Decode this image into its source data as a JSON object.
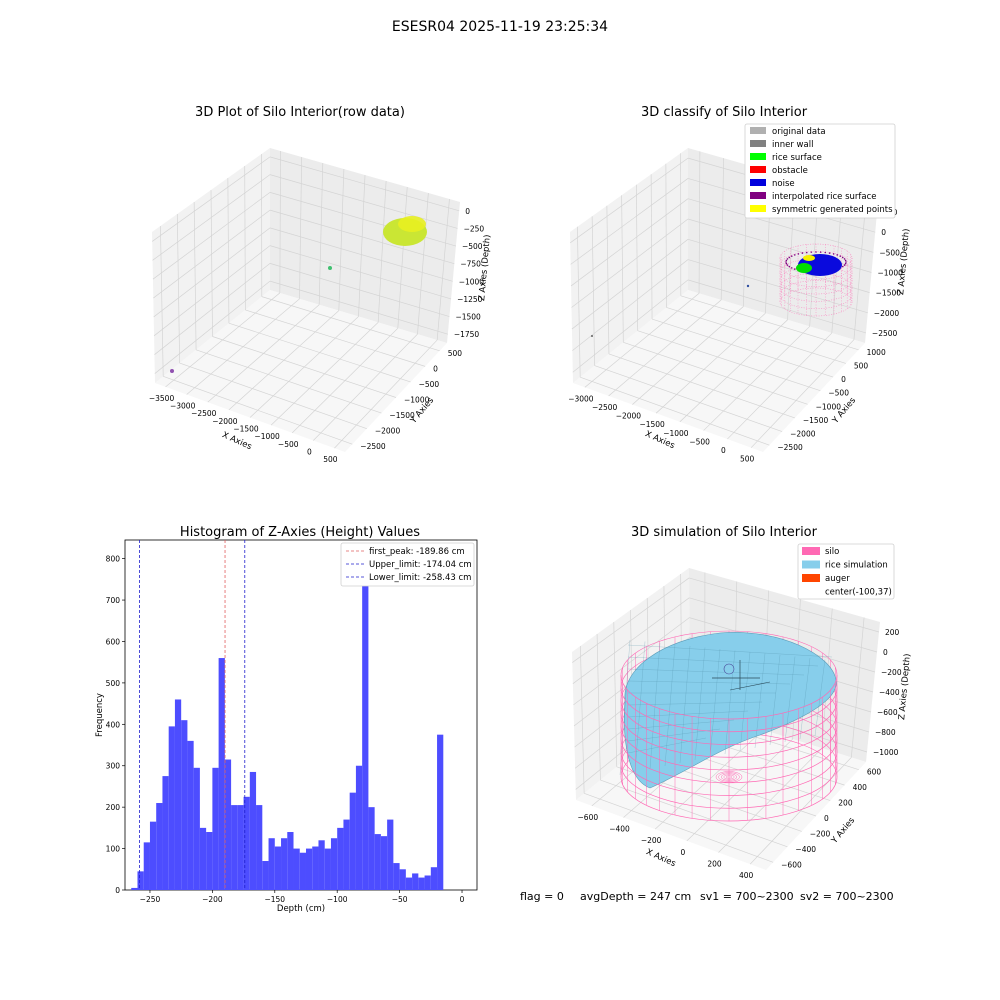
{
  "suptitle": "ESESR04 2025-11-19 23:25:34",
  "footer": {
    "flag": "flag = 0",
    "avg": "avgDepth = 247 cm",
    "sv1": "sv1 = 700~2300",
    "sv2": "sv2 = 700~2300"
  },
  "colors": {
    "hist_bar": "#4d4dff",
    "first_peak": "#e06060",
    "limit_line": "#2020cc",
    "silo": "#ff69b4",
    "rice": "#87ceeb",
    "auger": "#ff4500",
    "rice_surface": "#00ff00",
    "noise": "#0000dd",
    "interpolated": "#800080",
    "symmetric": "#ffff00",
    "original": "#b0b0b0",
    "inner_wall": "#808080",
    "raw_points": "#c8e62a"
  },
  "chart_data": [
    {
      "type": "scatter",
      "title": "3D Plot of Silo Interior(row data)",
      "xlabel": "X Axies",
      "ylabel": "Y Axies",
      "zlabel": "Z Axies (Depth)",
      "x_ticks": [
        "−3500",
        "−3000",
        "−2500",
        "−2000",
        "−1500",
        "−1000",
        "−500",
        "0",
        "500"
      ],
      "y_ticks": [
        "500",
        "0",
        "−500",
        "−1000",
        "−1500",
        "−2000",
        "−2500"
      ],
      "z_ticks": [
        "0",
        "−250",
        "−500",
        "−750",
        "−1000",
        "−1250",
        "−1500",
        "−1750"
      ],
      "xlim": [
        -3500,
        500
      ],
      "ylim": [
        -2500,
        500
      ],
      "zlim": [
        -1750,
        0
      ],
      "grid": true
    },
    {
      "type": "scatter",
      "title": "3D classify of Silo Interior",
      "xlabel": "X Axies",
      "ylabel": "Y Axies",
      "zlabel": "Z Axies (Depth)",
      "x_ticks": [
        "−3000",
        "−2500",
        "−2000",
        "−1500",
        "−1000",
        "−500",
        "0",
        "500"
      ],
      "y_ticks": [
        "1000",
        "500",
        "0",
        "−500",
        "−1000",
        "−1500",
        "−2000",
        "−2500"
      ],
      "z_ticks": [
        "500",
        "0",
        "−500",
        "−1000",
        "−1500",
        "−2000",
        "−2500"
      ],
      "xlim": [
        -3000,
        500
      ],
      "ylim": [
        -2500,
        1000
      ],
      "zlim": [
        -2500,
        500
      ],
      "legend": [
        "original data",
        "inner wall",
        "rice surface",
        "obstacle",
        "noise",
        "interpolated rice surface",
        "symmetric generated points"
      ],
      "legend_position": "top-right",
      "grid": true
    },
    {
      "type": "bar",
      "title": "Histogram of Z-Axies (Height) Values",
      "xlabel": "Depth (cm)",
      "ylabel": "Frequency",
      "xlim": [
        -270,
        12
      ],
      "ylim": [
        0,
        845
      ],
      "x_ticks": [
        -250,
        -200,
        -150,
        -100,
        -50,
        0
      ],
      "x_tick_labels": [
        "−250",
        "−200",
        "−150",
        "−100",
        "−50",
        "0"
      ],
      "y_ticks": [
        0,
        100,
        200,
        300,
        400,
        500,
        600,
        700,
        800
      ],
      "bin_start": -265,
      "bin_width": 5,
      "values": [
        5,
        45,
        115,
        165,
        210,
        275,
        395,
        460,
        410,
        360,
        295,
        150,
        140,
        295,
        560,
        315,
        205,
        205,
        225,
        285,
        205,
        70,
        125,
        105,
        125,
        140,
        100,
        90,
        100,
        105,
        120,
        100,
        125,
        150,
        170,
        235,
        300,
        800,
        200,
        135,
        130,
        170,
        65,
        50,
        30,
        40,
        30,
        35,
        55,
        375
      ],
      "vlines": [
        {
          "name": "first_peak: -189.86 cm",
          "x": -189.86,
          "color": "first_peak"
        },
        {
          "name": "Upper_limit: -174.04 cm",
          "x": -174.04,
          "color": "limit_line"
        },
        {
          "name": "Lower_limit: -258.43 cm",
          "x": -258.43,
          "color": "limit_line"
        }
      ],
      "legend_position": "top-right"
    },
    {
      "type": "scatter",
      "title": "3D simulation of Silo Interior",
      "xlabel": "X Axies",
      "ylabel": "Y Axies",
      "zlabel": "Z Axies (Depth)",
      "x_ticks": [
        "−600",
        "−400",
        "−200",
        "0",
        "200",
        "400"
      ],
      "y_ticks": [
        "600",
        "400",
        "200",
        "0",
        "−200",
        "−400",
        "−600"
      ],
      "z_ticks": [
        "200",
        "0",
        "−200",
        "−400",
        "−600",
        "−800",
        "−1000"
      ],
      "xlim": [
        -600,
        400
      ],
      "ylim": [
        -600,
        600
      ],
      "zlim": [
        -1000,
        200
      ],
      "legend": [
        "silo",
        "rice simulation",
        "auger",
        "center(-100,37)"
      ],
      "legend_position": "top-right",
      "grid": true
    }
  ]
}
